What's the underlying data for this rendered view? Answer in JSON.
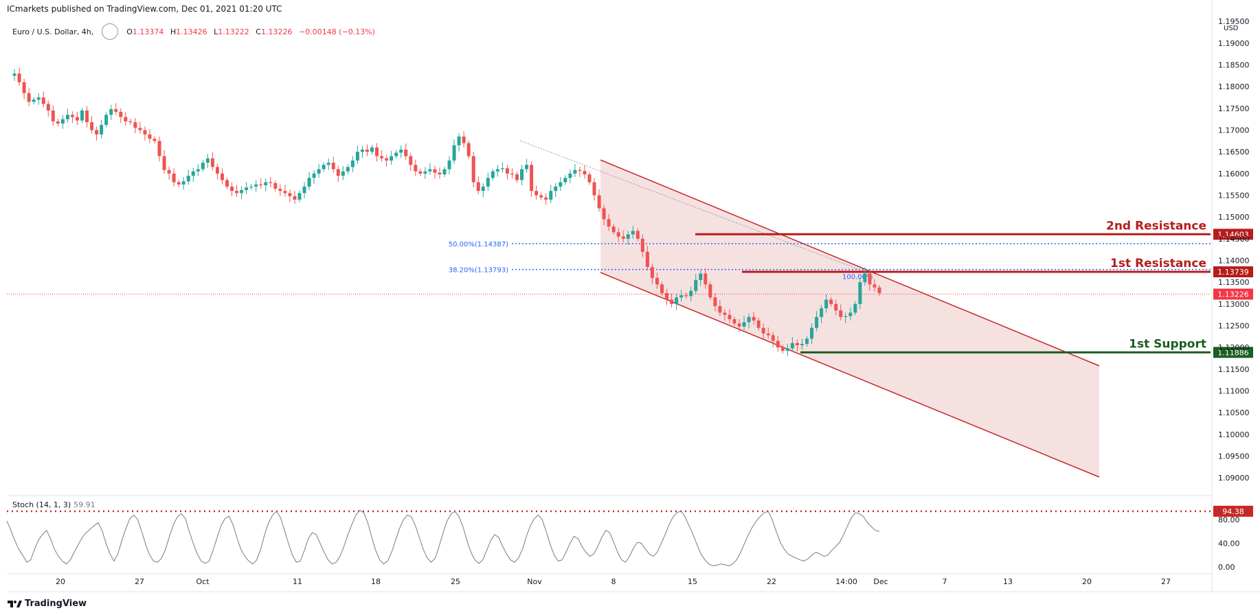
{
  "header": {
    "publisher": "ICmarkets published on TradingView.com, Dec 01, 2021 01:20 UTC",
    "symbol": "Euro / U.S. Dollar, 4h,",
    "ohlc": {
      "o_label": "O",
      "o": "1.13374",
      "h_label": "H",
      "h": "1.13426",
      "l_label": "L",
      "l": "1.13222",
      "c_label": "C",
      "c": "1.13226",
      "change": "−0.00148 (−0.13%)"
    },
    "currency": "USD"
  },
  "levels": {
    "resistance2": {
      "label": "2nd Resistance",
      "price": "1.14603",
      "value": 1.14603,
      "color": "#b71c1c"
    },
    "resistance1": {
      "label": "1st Resistance",
      "price": "1.13739",
      "value": 1.13739,
      "color": "#b71c1c"
    },
    "support1": {
      "label": "1st Support",
      "price": "1.11886",
      "value": 1.11886,
      "color": "#1b5e20"
    },
    "last": {
      "price": "1.13226",
      "value": 1.13226,
      "color": "#f23645"
    }
  },
  "fib": {
    "f50": {
      "label": "50.00%(1.14387)",
      "value": 1.14387
    },
    "f38": {
      "label": "38.20%(1.13793)",
      "value": 1.13793
    },
    "f100": {
      "label": "100.00%"
    }
  },
  "stoch": {
    "label": "Stoch (14, 1, 3)",
    "value": "59.91",
    "level_badge": "94.38",
    "ticks": [
      "80.00",
      "40.00",
      "0.00"
    ],
    "values": [
      78,
      62,
      45,
      30,
      20,
      8,
      12,
      30,
      46,
      55,
      62,
      48,
      30,
      18,
      10,
      5,
      12,
      25,
      38,
      50,
      58,
      64,
      70,
      75,
      62,
      40,
      22,
      10,
      22,
      45,
      65,
      82,
      88,
      80,
      60,
      38,
      20,
      10,
      8,
      15,
      30,
      52,
      72,
      85,
      90,
      82,
      60,
      40,
      22,
      10,
      6,
      10,
      28,
      50,
      70,
      82,
      86,
      72,
      50,
      30,
      18,
      10,
      5,
      12,
      30,
      55,
      75,
      88,
      94,
      84,
      62,
      40,
      20,
      8,
      10,
      28,
      48,
      58,
      55,
      40,
      25,
      12,
      5,
      8,
      18,
      35,
      55,
      72,
      88,
      96,
      92,
      75,
      50,
      28,
      12,
      5,
      10,
      25,
      45,
      65,
      80,
      88,
      85,
      70,
      50,
      30,
      15,
      8,
      15,
      35,
      58,
      78,
      90,
      94,
      85,
      68,
      45,
      25,
      12,
      6,
      12,
      28,
      45,
      55,
      50,
      35,
      22,
      12,
      8,
      15,
      30,
      52,
      70,
      82,
      88,
      80,
      60,
      38,
      20,
      10,
      12,
      25,
      40,
      52,
      48,
      35,
      25,
      18,
      22,
      35,
      50,
      62,
      58,
      42,
      25,
      12,
      8,
      18,
      32,
      42,
      40,
      30,
      22,
      18,
      25,
      40,
      55,
      72,
      85,
      92,
      95,
      85,
      70,
      55,
      38,
      22,
      12,
      5,
      2,
      3,
      5,
      4,
      2,
      5,
      12,
      25,
      40,
      55,
      68,
      78,
      86,
      92,
      94,
      80,
      60,
      42,
      30,
      22,
      18,
      15,
      12,
      10,
      14,
      20,
      25,
      22,
      18,
      20,
      28,
      35,
      42,
      55,
      70,
      84,
      92,
      90,
      85,
      75,
      68,
      62,
      60
    ]
  },
  "chart_data": {
    "type": "candlestick",
    "title": "Euro / U.S. Dollar, 4h",
    "ylabel": "USD",
    "ylim": [
      1.0875,
      1.1955
    ],
    "y_ticks": [
      "1.19500",
      "1.19000",
      "1.18500",
      "1.18000",
      "1.17500",
      "1.17000",
      "1.16500",
      "1.16000",
      "1.15500",
      "1.15000",
      "1.14500",
      "1.14000",
      "1.13500",
      "1.13000",
      "1.12500",
      "1.12000",
      "1.11500",
      "1.11000",
      "1.10500",
      "1.10000",
      "1.09500",
      "1.09000"
    ],
    "x_ticks": [
      "20",
      "27",
      "Oct",
      "11",
      "18",
      "25",
      "Nov",
      "8",
      "15",
      "22",
      "14:00",
      "Dec",
      "7",
      "13",
      "20",
      "27"
    ],
    "close_path": [
      1.1825,
      1.183,
      1.181,
      1.1785,
      1.1765,
      1.177,
      1.1775,
      1.176,
      1.1745,
      1.172,
      1.1715,
      1.1725,
      1.1735,
      1.173,
      1.1722,
      1.1745,
      1.1718,
      1.17,
      1.169,
      1.1712,
      1.1735,
      1.1748,
      1.1742,
      1.173,
      1.172,
      1.1718,
      1.1705,
      1.17,
      1.169,
      1.168,
      1.1675,
      1.164,
      1.1608,
      1.16,
      1.158,
      1.1575,
      1.1582,
      1.1595,
      1.1605,
      1.161,
      1.1625,
      1.1635,
      1.1615,
      1.16,
      1.1585,
      1.157,
      1.156,
      1.1555,
      1.1562,
      1.1568,
      1.157,
      1.1575,
      1.1573,
      1.158,
      1.1578,
      1.1565,
      1.156,
      1.1555,
      1.1548,
      1.154,
      1.1555,
      1.157,
      1.159,
      1.16,
      1.161,
      1.162,
      1.1625,
      1.161,
      1.1595,
      1.1605,
      1.1615,
      1.163,
      1.165,
      1.1655,
      1.165,
      1.166,
      1.164,
      1.1635,
      1.163,
      1.164,
      1.1648,
      1.1655,
      1.164,
      1.162,
      1.1605,
      1.16,
      1.1605,
      1.161,
      1.1602,
      1.1598,
      1.161,
      1.163,
      1.1665,
      1.1685,
      1.167,
      1.164,
      1.158,
      1.156,
      1.157,
      1.159,
      1.1605,
      1.161,
      1.1612,
      1.16,
      1.1598,
      1.1585,
      1.161,
      1.162,
      1.156,
      1.155,
      1.1545,
      1.154,
      1.156,
      1.157,
      1.158,
      1.159,
      1.16,
      1.1608,
      1.1606,
      1.1598,
      1.158,
      1.155,
      1.152,
      1.1495,
      1.1478,
      1.1465,
      1.1455,
      1.145,
      1.146,
      1.1468,
      1.145,
      1.142,
      1.1385,
      1.136,
      1.1345,
      1.1325,
      1.131,
      1.13,
      1.1315,
      1.132,
      1.1318,
      1.133,
      1.1355,
      1.137,
      1.1345,
      1.1315,
      1.1295,
      1.128,
      1.1275,
      1.1265,
      1.1255,
      1.1248,
      1.1258,
      1.127,
      1.1262,
      1.1245,
      1.1232,
      1.1228,
      1.1215,
      1.12,
      1.1192,
      1.1198,
      1.121,
      1.1205,
      1.1208,
      1.122,
      1.1245,
      1.127,
      1.129,
      1.131,
      1.13,
      1.1285,
      1.127,
      1.1272,
      1.128,
      1.13,
      1.135,
      1.137,
      1.1345,
      1.1338,
      1.1325
    ]
  },
  "footer": {
    "brand": "TradingView"
  }
}
